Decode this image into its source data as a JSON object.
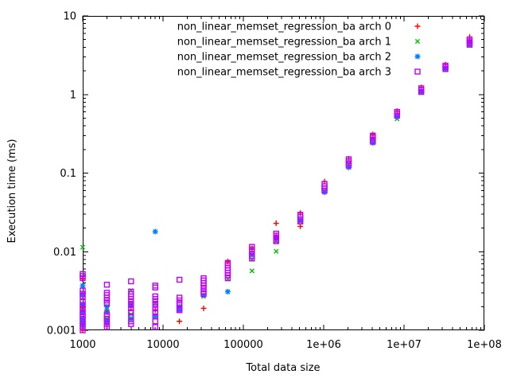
{
  "chart_data": {
    "type": "scatter",
    "title": "",
    "xlabel": "Total data size",
    "ylabel": "Execution time (ms)",
    "x_scale": "log",
    "y_scale": "log",
    "xlim": [
      1000,
      100000000
    ],
    "ylim": [
      0.001,
      10
    ],
    "grid": false,
    "legend_position": "inside top, right-aligned text with marker at right",
    "x_ticks": [
      {
        "value": 1000,
        "label": "1000"
      },
      {
        "value": 10000,
        "label": "10000"
      },
      {
        "value": 100000,
        "label": "100000"
      },
      {
        "value": 1000000,
        "label": "1e+06"
      },
      {
        "value": 10000000,
        "label": "1e+07"
      },
      {
        "value": 100000000,
        "label": "1e+08"
      }
    ],
    "y_ticks": [
      {
        "value": 0.001,
        "label": "0.001"
      },
      {
        "value": 0.01,
        "label": "0.01"
      },
      {
        "value": 0.1,
        "label": "0.1"
      },
      {
        "value": 1,
        "label": "1"
      },
      {
        "value": 10,
        "label": "10"
      }
    ],
    "series": [
      {
        "name": "non_linear_memset_regression_ba arch 0",
        "marker": "plus",
        "color": "#ff0000",
        "points": [
          [
            1000,
            0.0045
          ],
          [
            1000,
            0.0019
          ],
          [
            1000,
            0.0013
          ],
          [
            1000,
            0.001
          ],
          [
            2000,
            0.0018
          ],
          [
            2000,
            0.0012
          ],
          [
            4000,
            0.002
          ],
          [
            8000,
            0.0018
          ],
          [
            16000,
            0.0013
          ],
          [
            32000,
            0.0019
          ],
          [
            64000,
            0.0075
          ],
          [
            128000,
            0.011
          ],
          [
            256000,
            0.023
          ],
          [
            256000,
            0.016
          ],
          [
            512000,
            0.031
          ],
          [
            512000,
            0.021
          ],
          [
            1024000,
            0.078
          ],
          [
            2048000,
            0.152
          ],
          [
            4096000,
            0.31
          ],
          [
            8192000,
            0.615
          ],
          [
            16384000,
            1.23
          ],
          [
            32768000,
            2.4
          ],
          [
            65536000,
            5.4
          ],
          [
            65536000,
            4.9
          ]
        ]
      },
      {
        "name": "non_linear_memset_regression_ba arch 1",
        "marker": "cross",
        "color": "#00c000",
        "points": [
          [
            1000,
            0.0114
          ],
          [
            1000,
            0.002
          ],
          [
            1000,
            0.0013
          ],
          [
            2000,
            0.0019
          ],
          [
            2000,
            0.0014
          ],
          [
            4000,
            0.0032
          ],
          [
            4000,
            0.0016
          ],
          [
            8000,
            0.0022
          ],
          [
            16000,
            0.0019
          ],
          [
            32000,
            0.0027
          ],
          [
            64000,
            0.0045
          ],
          [
            128000,
            0.008
          ],
          [
            128000,
            0.0057
          ],
          [
            256000,
            0.0135
          ],
          [
            256000,
            0.0101
          ],
          [
            512000,
            0.024
          ],
          [
            1024000,
            0.059
          ],
          [
            2048000,
            0.13
          ],
          [
            4096000,
            0.27
          ],
          [
            8192000,
            0.49
          ],
          [
            16384000,
            1.05
          ],
          [
            32768000,
            2.05
          ],
          [
            65536000,
            4.2
          ]
        ]
      },
      {
        "name": "non_linear_memset_regression_ba arch 2",
        "marker": "asterisk",
        "color": "#0080ff",
        "points": [
          [
            1000,
            0.0037
          ],
          [
            1000,
            0.0028
          ],
          [
            1000,
            0.0021
          ],
          [
            1000,
            0.0017
          ],
          [
            1000,
            0.0014
          ],
          [
            1000,
            0.0012
          ],
          [
            2000,
            0.002
          ],
          [
            2000,
            0.0017
          ],
          [
            2000,
            0.0013
          ],
          [
            4000,
            0.0021
          ],
          [
            4000,
            0.0014
          ],
          [
            8000,
            0.018
          ],
          [
            8000,
            0.0015
          ],
          [
            16000,
            0.002
          ],
          [
            16000,
            0.0018
          ],
          [
            32000,
            0.0028
          ],
          [
            64000,
            0.0031
          ],
          [
            128000,
            0.0092
          ],
          [
            256000,
            0.015
          ],
          [
            512000,
            0.0253
          ],
          [
            1024000,
            0.057
          ],
          [
            2048000,
            0.118
          ],
          [
            4096000,
            0.242
          ],
          [
            8192000,
            0.52
          ],
          [
            16384000,
            1.1
          ],
          [
            32768000,
            2.15
          ],
          [
            65536000,
            4.6
          ]
        ]
      },
      {
        "name": "non_linear_memset_regression_ba arch 3",
        "marker": "square-open",
        "color": "#c000ff",
        "points": [
          [
            1000,
            0.0052
          ],
          [
            1000,
            0.0049
          ],
          [
            1000,
            0.0046
          ],
          [
            1000,
            0.0032
          ],
          [
            1000,
            0.0029
          ],
          [
            1000,
            0.0027
          ],
          [
            1000,
            0.0023
          ],
          [
            1000,
            0.0021
          ],
          [
            1000,
            0.0019
          ],
          [
            1000,
            0.0017
          ],
          [
            1000,
            0.0016
          ],
          [
            1000,
            0.0015
          ],
          [
            1000,
            0.0014
          ],
          [
            1000,
            0.0013
          ],
          [
            1000,
            0.0012
          ],
          [
            1000,
            0.0011
          ],
          [
            1000,
            0.001
          ],
          [
            2000,
            0.0038
          ],
          [
            2000,
            0.003
          ],
          [
            2000,
            0.0028
          ],
          [
            2000,
            0.0026
          ],
          [
            2000,
            0.0024
          ],
          [
            2000,
            0.0022
          ],
          [
            2000,
            0.0016
          ],
          [
            2000,
            0.0015
          ],
          [
            2000,
            0.0014
          ],
          [
            2000,
            0.0013
          ],
          [
            2000,
            0.0012
          ],
          [
            2000,
            0.0011
          ],
          [
            4000,
            0.0042
          ],
          [
            4000,
            0.0031
          ],
          [
            4000,
            0.0029
          ],
          [
            4000,
            0.0027
          ],
          [
            4000,
            0.0025
          ],
          [
            4000,
            0.0023
          ],
          [
            4000,
            0.0021
          ],
          [
            4000,
            0.0019
          ],
          [
            4000,
            0.0017
          ],
          [
            4000,
            0.0015
          ],
          [
            4000,
            0.0013
          ],
          [
            4000,
            0.0012
          ],
          [
            8000,
            0.0037
          ],
          [
            8000,
            0.0035
          ],
          [
            8000,
            0.0027
          ],
          [
            8000,
            0.0025
          ],
          [
            8000,
            0.0023
          ],
          [
            8000,
            0.0021
          ],
          [
            8000,
            0.0019
          ],
          [
            8000,
            0.0017
          ],
          [
            8000,
            0.0015
          ],
          [
            8000,
            0.0013
          ],
          [
            8000,
            0.0011
          ],
          [
            16000,
            0.0044
          ],
          [
            16000,
            0.0026
          ],
          [
            16000,
            0.0024
          ],
          [
            16000,
            0.0022
          ],
          [
            16000,
            0.0021
          ],
          [
            16000,
            0.0019
          ],
          [
            16000,
            0.0018
          ],
          [
            32000,
            0.0046
          ],
          [
            32000,
            0.0043
          ],
          [
            32000,
            0.004
          ],
          [
            32000,
            0.0037
          ],
          [
            32000,
            0.0034
          ],
          [
            32000,
            0.0031
          ],
          [
            32000,
            0.0029
          ],
          [
            64000,
            0.0072
          ],
          [
            64000,
            0.0067
          ],
          [
            64000,
            0.0062
          ],
          [
            64000,
            0.0058
          ],
          [
            64000,
            0.0054
          ],
          [
            64000,
            0.005
          ],
          [
            64000,
            0.0046
          ],
          [
            128000,
            0.0115
          ],
          [
            128000,
            0.0107
          ],
          [
            128000,
            0.01
          ],
          [
            128000,
            0.0094
          ],
          [
            128000,
            0.0088
          ],
          [
            128000,
            0.0082
          ],
          [
            256000,
            0.017
          ],
          [
            256000,
            0.016
          ],
          [
            256000,
            0.0151
          ],
          [
            256000,
            0.0143
          ],
          [
            256000,
            0.0136
          ],
          [
            512000,
            0.0295
          ],
          [
            512000,
            0.0275
          ],
          [
            512000,
            0.0258
          ],
          [
            512000,
            0.0242
          ],
          [
            1024000,
            0.073
          ],
          [
            1024000,
            0.068
          ],
          [
            1024000,
            0.064
          ],
          [
            1024000,
            0.06
          ],
          [
            2048000,
            0.15
          ],
          [
            2048000,
            0.141
          ],
          [
            2048000,
            0.133
          ],
          [
            2048000,
            0.125
          ],
          [
            4096000,
            0.3
          ],
          [
            4096000,
            0.283
          ],
          [
            4096000,
            0.267
          ],
          [
            4096000,
            0.252
          ],
          [
            8192000,
            0.6
          ],
          [
            8192000,
            0.57
          ],
          [
            8192000,
            0.54
          ],
          [
            16384000,
            1.2
          ],
          [
            16384000,
            1.14
          ],
          [
            16384000,
            1.08
          ],
          [
            32768000,
            2.33
          ],
          [
            32768000,
            2.22
          ],
          [
            32768000,
            2.11
          ],
          [
            65536000,
            5.0
          ],
          [
            65536000,
            4.75
          ],
          [
            65536000,
            4.5
          ],
          [
            65536000,
            4.3
          ]
        ]
      }
    ]
  },
  "colors": {
    "background": "#ffffff",
    "axis": "#000000",
    "text": "#000000"
  }
}
